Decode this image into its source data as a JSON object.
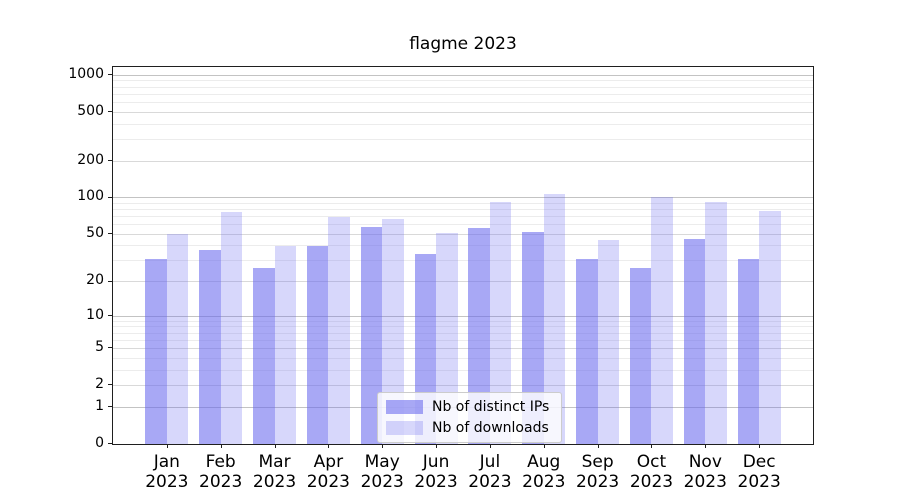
{
  "chart_data": {
    "type": "bar",
    "title": "flagme 2023",
    "categories": [
      "Jan 2023",
      "Feb 2023",
      "Mar 2023",
      "Apr 2023",
      "May 2023",
      "Jun 2023",
      "Jul 2023",
      "Aug 2023",
      "Sep 2023",
      "Oct 2023",
      "Nov 2023",
      "Dec 2023"
    ],
    "series": [
      {
        "name": "Nb of distinct IPs",
        "color": "rgba(102,102,238,0.57)",
        "values": [
          31,
          37,
          26,
          40,
          57,
          34,
          56,
          52,
          31,
          26,
          46,
          31
        ]
      },
      {
        "name": "Nb of downloads",
        "color": "rgba(102,102,238,0.26)",
        "values": [
          50,
          76,
          40,
          70,
          67,
          51,
          92,
          107,
          45,
          102,
          93,
          78
        ]
      }
    ],
    "yscale": "log1p",
    "ylim": [
      0,
      1170
    ],
    "xlim": [
      -1,
      12
    ],
    "yticks": [
      0,
      1,
      2,
      5,
      10,
      20,
      50,
      100,
      200,
      500,
      1000
    ],
    "ytick_labels": [
      "0",
      "1",
      "2",
      "5",
      "10",
      "20",
      "50",
      "100",
      "200",
      "500",
      "1000"
    ],
    "minor_gridlines": [
      3,
      4,
      6,
      7,
      8,
      9,
      30,
      40,
      60,
      70,
      80,
      90,
      300,
      400,
      600,
      700,
      800,
      900
    ],
    "grid": true,
    "legend_position": "lower center",
    "bar_width_units": 0.4,
    "colors": {
      "decade_grid": "#c3c3c3",
      "major_grid": "#d9d9d9",
      "minor_grid": "#ececec",
      "axis": "#1f1f1f"
    }
  }
}
